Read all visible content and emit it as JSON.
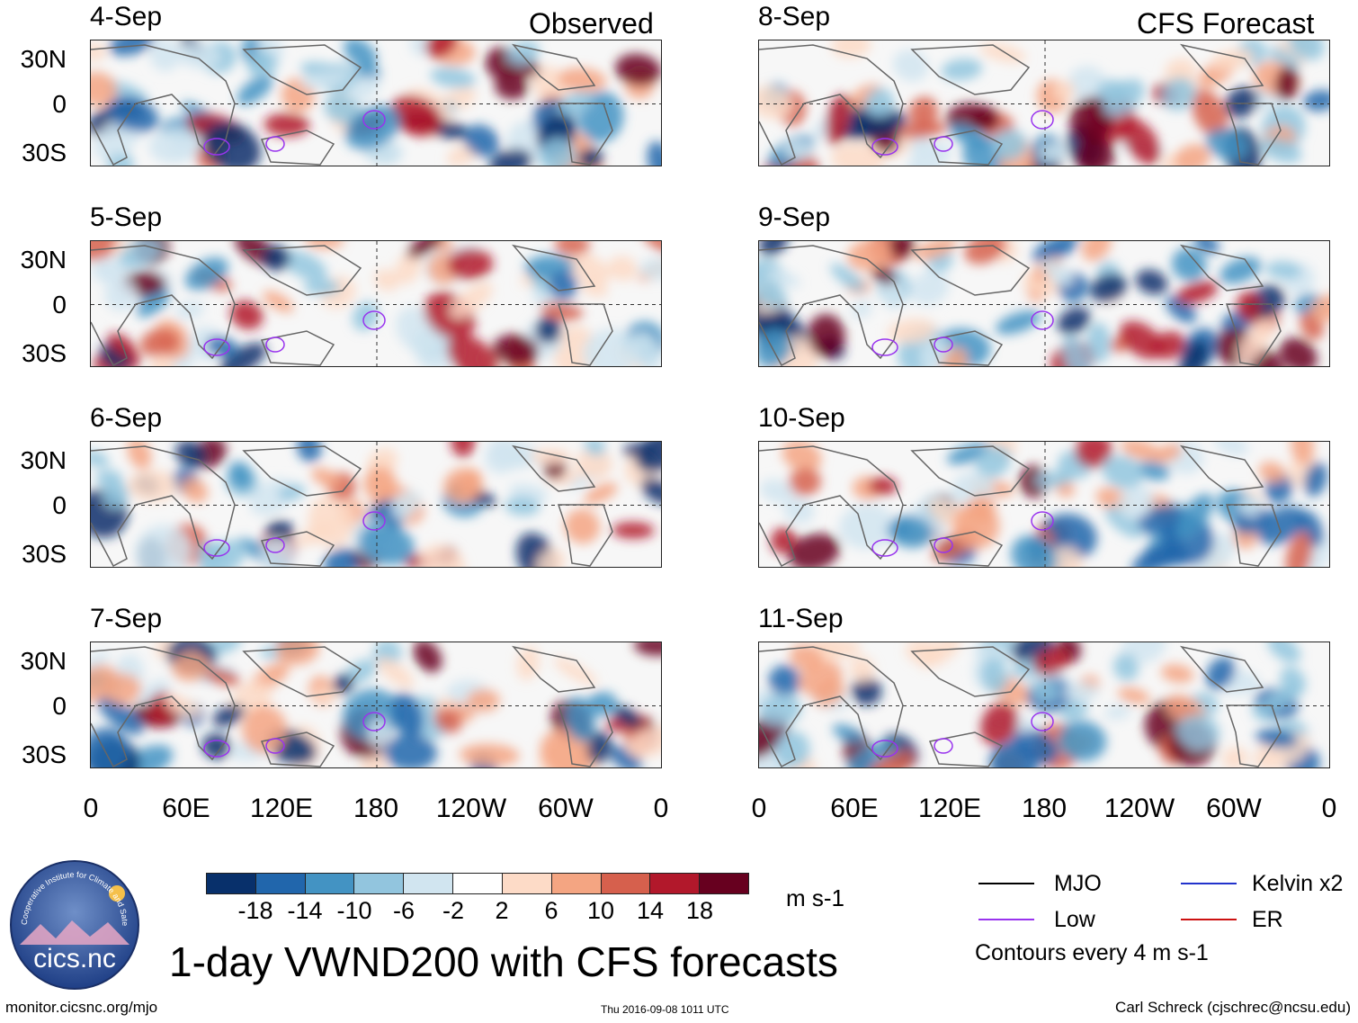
{
  "left_header": "Observed",
  "right_header": "CFS Forecast",
  "observed_panels": [
    {
      "date": "4-Sep"
    },
    {
      "date": "5-Sep"
    },
    {
      "date": "6-Sep"
    },
    {
      "date": "7-Sep"
    }
  ],
  "forecast_panels": [
    {
      "date": "8-Sep"
    },
    {
      "date": "9-Sep"
    },
    {
      "date": "10-Sep"
    },
    {
      "date": "11-Sep"
    }
  ],
  "lat_labels": [
    "30N",
    "0",
    "30S"
  ],
  "lon_labels": [
    "0",
    "60E",
    "120E",
    "180",
    "120W",
    "60W",
    "0"
  ],
  "colorbar": {
    "colors": [
      "#08306b",
      "#2166ac",
      "#4393c3",
      "#92c5de",
      "#d1e5f0",
      "#ffffff",
      "#fddbc7",
      "#f4a582",
      "#d6604d",
      "#b2182b",
      "#67001f"
    ],
    "ticks": [
      "-18",
      "-14",
      "-10",
      "-6",
      "-2",
      "2",
      "6",
      "10",
      "14",
      "18"
    ],
    "units": "m s-1"
  },
  "legend": {
    "mjo": "MJO",
    "kelvin": "Kelvin x2",
    "low": "Low",
    "er": "ER",
    "contours": "Contours every 4 m s-1",
    "mjo_color": "#000000",
    "kelvin_color": "#2233cc",
    "low_color": "#9933ee",
    "er_color": "#cc1111"
  },
  "title": "1-day VWND200 with CFS forecasts",
  "logo_text": "cics.nc",
  "logo_ring_text": "Cooperative Institute for Climate and Satellites",
  "footer": {
    "url": "monitor.cicsnc.org/mjo",
    "timestamp": "Thu 2016-09-08 1011 UTC",
    "author": "Carl Schreck (cjschrec@ncsu.edu)"
  }
}
